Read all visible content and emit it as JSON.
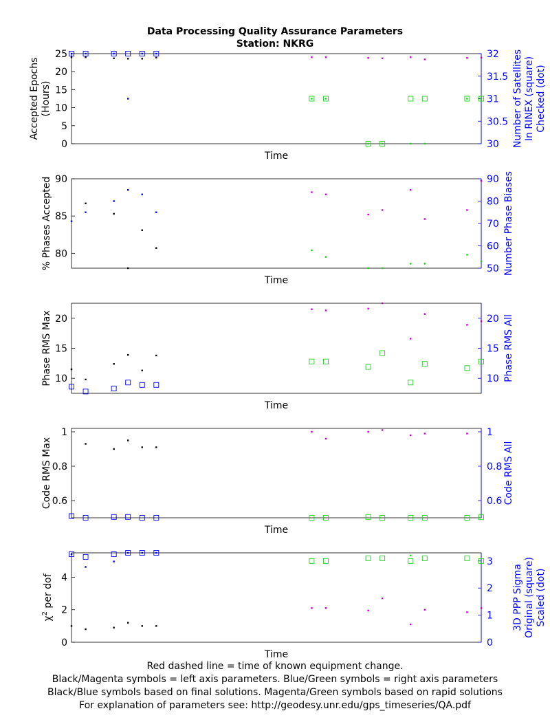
{
  "figure": {
    "title_line1": "Data Processing Quality Assurance Parameters",
    "title_line2": "Station: NKRG",
    "footer": [
      "Red dashed line = time of known equipment change.",
      "Black/Magenta symbols = left axis parameters. Blue/Green symbols = right axis parameters",
      "Black/Blue symbols based on final solutions.  Magenta/Green symbols based on rapid solutions",
      "For explanation of parameters see: http://geodesy.unr.edu/gps_timeseries/QA.pdf"
    ]
  },
  "colors": {
    "final_left": "#000000",
    "final_right": "#0000ff",
    "rapid_left": "#cc00cc",
    "rapid_right": "#22cc22",
    "right_axis": "#0000ff"
  },
  "chart_data": [
    {
      "type": "scatter",
      "xlabel": "Time",
      "xlim": [
        0,
        29
      ],
      "left_axis": {
        "label": [
          "Accepted Epochs",
          "(Hours)"
        ],
        "ylim": [
          0,
          25
        ],
        "ticks": [
          0,
          5,
          10,
          15,
          20,
          25
        ]
      },
      "right_axis": {
        "label": [
          "Number of Satellites",
          "In RINEX (square)",
          "Checked (dot)"
        ],
        "ylim": [
          30,
          32
        ],
        "ticks": [
          30,
          30.5,
          31,
          31.5,
          32
        ]
      },
      "series": [
        {
          "axis": "left",
          "group": "final_left",
          "marker": "dot",
          "points": [
            [
              0,
              24
            ],
            [
              1,
              24
            ],
            [
              3,
              23.7
            ],
            [
              4,
              23.6
            ],
            [
              5,
              23.6
            ],
            [
              6,
              23.9
            ]
          ]
        },
        {
          "axis": "left",
          "group": "rapid_left",
          "marker": "dot",
          "points": [
            [
              17,
              24
            ],
            [
              18,
              24
            ],
            [
              21,
              23.8
            ],
            [
              22,
              23.7
            ],
            [
              24,
              24
            ],
            [
              25,
              23.4
            ],
            [
              28,
              23.8
            ],
            [
              29,
              23.9
            ]
          ]
        },
        {
          "axis": "right",
          "group": "final_right",
          "marker": "square",
          "points": [
            [
              0,
              32
            ],
            [
              1,
              32
            ],
            [
              3,
              32
            ],
            [
              4,
              32
            ],
            [
              5,
              32
            ],
            [
              6,
              32
            ]
          ]
        },
        {
          "axis": "right",
          "group": "final_right",
          "marker": "dot",
          "points": [
            [
              0,
              32
            ],
            [
              1,
              32
            ],
            [
              3,
              32
            ],
            [
              4,
              31
            ],
            [
              5,
              32
            ],
            [
              6,
              32
            ]
          ]
        },
        {
          "axis": "right",
          "group": "rapid_right",
          "marker": "square",
          "points": [
            [
              17,
              31
            ],
            [
              18,
              31
            ],
            [
              21,
              30
            ],
            [
              22,
              30
            ],
            [
              24,
              31
            ],
            [
              25,
              31
            ],
            [
              28,
              31
            ],
            [
              29,
              31
            ]
          ]
        },
        {
          "axis": "right",
          "group": "rapid_right",
          "marker": "dot",
          "points": [
            [
              17,
              31
            ],
            [
              18,
              31
            ],
            [
              21,
              30
            ],
            [
              22,
              30
            ],
            [
              24,
              30
            ],
            [
              25,
              30
            ],
            [
              28,
              31
            ],
            [
              29,
              31
            ]
          ]
        }
      ]
    },
    {
      "type": "scatter",
      "xlabel": "Time",
      "xlim": [
        0,
        29
      ],
      "left_axis": {
        "label": [
          "% Phases Accepted"
        ],
        "ylim": [
          78,
          90
        ],
        "ticks": [
          80,
          85,
          90
        ]
      },
      "right_axis": {
        "label": [
          "Number Phase Biases"
        ],
        "ylim": [
          50,
          90
        ],
        "ticks": [
          50,
          60,
          70,
          80,
          90
        ]
      },
      "series": [
        {
          "axis": "left",
          "group": "final_left",
          "marker": "dot",
          "points": [
            [
              1,
              86.7
            ],
            [
              3,
              85.3
            ],
            [
              4,
              78
            ],
            [
              5,
              83.1
            ],
            [
              6,
              80.7
            ]
          ]
        },
        {
          "axis": "left",
          "group": "rapid_left",
          "marker": "dot",
          "points": []
        },
        {
          "axis": "right",
          "group": "final_right",
          "marker": "dot",
          "points": [
            [
              0,
              71
            ],
            [
              1,
              75
            ],
            [
              3,
              80
            ],
            [
              4,
              85
            ],
            [
              5,
              83
            ],
            [
              6,
              75
            ]
          ]
        },
        {
          "axis": "right",
          "group": "rapid_left",
          "marker": "dot",
          "points": [
            [
              17,
              84
            ],
            [
              18,
              83
            ],
            [
              21,
              74
            ],
            [
              22,
              76
            ],
            [
              24,
              85
            ],
            [
              25,
              72
            ],
            [
              28,
              76
            ],
            [
              29,
              89
            ]
          ]
        },
        {
          "axis": "right",
          "group": "rapid_right",
          "marker": "dot",
          "points": [
            [
              17,
              58
            ],
            [
              18,
              55
            ],
            [
              21,
              50
            ],
            [
              22,
              50
            ],
            [
              24,
              52
            ],
            [
              25,
              52
            ],
            [
              28,
              56
            ],
            [
              29,
              53
            ]
          ]
        }
      ]
    },
    {
      "type": "scatter",
      "xlabel": "Time",
      "xlim": [
        0,
        29
      ],
      "left_axis": {
        "label": [
          "Phase RMS Max"
        ],
        "ylim": [
          7.5,
          22.5
        ],
        "ticks": [
          10,
          15,
          20
        ]
      },
      "right_axis": {
        "label": [
          "Phase RMS All"
        ],
        "ylim": [
          7.5,
          22.5
        ],
        "ticks": [
          10,
          15,
          20
        ]
      },
      "series": [
        {
          "axis": "left",
          "group": "final_left",
          "marker": "dot",
          "points": [
            [
              0,
              11.5
            ],
            [
              1,
              9.8
            ],
            [
              3,
              12.4
            ],
            [
              4,
              13.9
            ],
            [
              5,
              11.3
            ],
            [
              6,
              13.8
            ]
          ]
        },
        {
          "axis": "left",
          "group": "rapid_left",
          "marker": "dot",
          "points": [
            [
              17,
              21.5
            ],
            [
              18,
              21.3
            ],
            [
              21,
              21.6
            ],
            [
              22,
              22.5
            ],
            [
              24,
              16.6
            ],
            [
              25,
              20.7
            ],
            [
              28,
              18.9
            ],
            [
              29,
              19.5
            ]
          ]
        },
        {
          "axis": "right",
          "group": "final_right",
          "marker": "square",
          "points": [
            [
              0,
              8.6
            ],
            [
              1,
              7.8
            ],
            [
              3,
              8.3
            ],
            [
              4,
              9.3
            ],
            [
              5,
              8.9
            ],
            [
              6,
              8.9
            ]
          ]
        },
        {
          "axis": "right",
          "group": "rapid_right",
          "marker": "square",
          "points": [
            [
              17,
              12.8
            ],
            [
              18,
              12.8
            ],
            [
              21,
              11.9
            ],
            [
              22,
              14.2
            ],
            [
              24,
              9.3
            ],
            [
              25,
              12.4
            ],
            [
              28,
              11.7
            ],
            [
              29,
              12.8
            ]
          ]
        }
      ]
    },
    {
      "type": "scatter",
      "xlabel": "Time",
      "xlim": [
        0,
        29
      ],
      "left_axis": {
        "label": [
          "Code RMS Max"
        ],
        "ylim": [
          0.5,
          1.02
        ],
        "ticks": [
          0.6,
          0.8,
          1
        ]
      },
      "right_axis": {
        "label": [
          "Code RMS All"
        ],
        "ylim": [
          0.5,
          1.02
        ],
        "ticks": [
          0.6,
          0.8,
          1
        ]
      },
      "series": [
        {
          "axis": "left",
          "group": "final_left",
          "marker": "dot",
          "points": [
            [
              1,
              0.93
            ],
            [
              3,
              0.9
            ],
            [
              4,
              0.95
            ],
            [
              5,
              0.91
            ],
            [
              6,
              0.91
            ]
          ]
        },
        {
          "axis": "left",
          "group": "rapid_left",
          "marker": "dot",
          "points": [
            [
              17,
              1.0
            ],
            [
              18,
              0.96
            ],
            [
              21,
              1.0
            ],
            [
              22,
              1.01
            ],
            [
              24,
              0.98
            ],
            [
              25,
              0.99
            ],
            [
              28,
              0.99
            ]
          ]
        },
        {
          "axis": "right",
          "group": "final_right",
          "marker": "square",
          "points": [
            [
              0,
              0.51
            ],
            [
              1,
              0.5
            ],
            [
              3,
              0.505
            ],
            [
              4,
              0.505
            ],
            [
              5,
              0.5
            ],
            [
              6,
              0.5
            ]
          ]
        },
        {
          "axis": "right",
          "group": "rapid_right",
          "marker": "square",
          "points": [
            [
              17,
              0.5
            ],
            [
              18,
              0.5
            ],
            [
              21,
              0.505
            ],
            [
              22,
              0.5
            ],
            [
              24,
              0.5
            ],
            [
              25,
              0.5
            ],
            [
              28,
              0.5
            ],
            [
              29,
              0.503
            ]
          ]
        }
      ]
    },
    {
      "type": "scatter",
      "xlabel": "Time",
      "xlim": [
        0,
        29
      ],
      "left_axis": {
        "label_tex": true,
        "label": [
          "χ",
          "2",
          " per dof"
        ],
        "ylim": [
          0,
          5.5
        ],
        "ticks": [
          0,
          2,
          4
        ]
      },
      "right_axis": {
        "label": [
          "3D PPP Sigma",
          "Original (square)",
          "Scaled (dot)"
        ],
        "ylim": [
          0,
          3.3
        ],
        "ticks": [
          0,
          1,
          2,
          3
        ]
      },
      "series": [
        {
          "axis": "left",
          "group": "final_left",
          "marker": "dot",
          "points": [
            [
              0,
              1.0
            ],
            [
              1,
              0.8
            ],
            [
              3,
              0.9
            ],
            [
              4,
              1.2
            ],
            [
              5,
              1.0
            ],
            [
              6,
              1.0
            ]
          ]
        },
        {
          "axis": "left",
          "group": "rapid_left",
          "marker": "dot",
          "points": [
            [
              17,
              2.1
            ],
            [
              18,
              2.1
            ],
            [
              21,
              1.95
            ],
            [
              22,
              2.7
            ],
            [
              24,
              1.1
            ],
            [
              25,
              2.0
            ],
            [
              28,
              1.85
            ],
            [
              29,
              2.1
            ]
          ]
        },
        {
          "axis": "right",
          "group": "final_right",
          "marker": "square",
          "points": [
            [
              0,
              3.25
            ],
            [
              1,
              3.15
            ],
            [
              3,
              3.25
            ],
            [
              4,
              3.3
            ],
            [
              5,
              3.3
            ],
            [
              6,
              3.3
            ]
          ]
        },
        {
          "axis": "right",
          "group": "final_right",
          "marker": "dot",
          "points": [
            [
              0,
              3.25
            ],
            [
              1,
              2.78
            ],
            [
              3,
              2.98
            ],
            [
              4,
              3.3
            ],
            [
              5,
              3.3
            ],
            [
              6,
              3.3
            ]
          ]
        },
        {
          "axis": "right",
          "group": "rapid_right",
          "marker": "square",
          "points": [
            [
              17,
              3.0
            ],
            [
              18,
              3.0
            ],
            [
              21,
              3.1
            ],
            [
              22,
              3.1
            ],
            [
              24,
              3.0
            ],
            [
              25,
              3.1
            ],
            [
              28,
              3.1
            ],
            [
              29,
              3.0
            ]
          ]
        },
        {
          "axis": "right",
          "group": "rapid_right",
          "marker": "dot",
          "points": [
            [
              24,
              3.2
            ]
          ]
        }
      ]
    }
  ]
}
